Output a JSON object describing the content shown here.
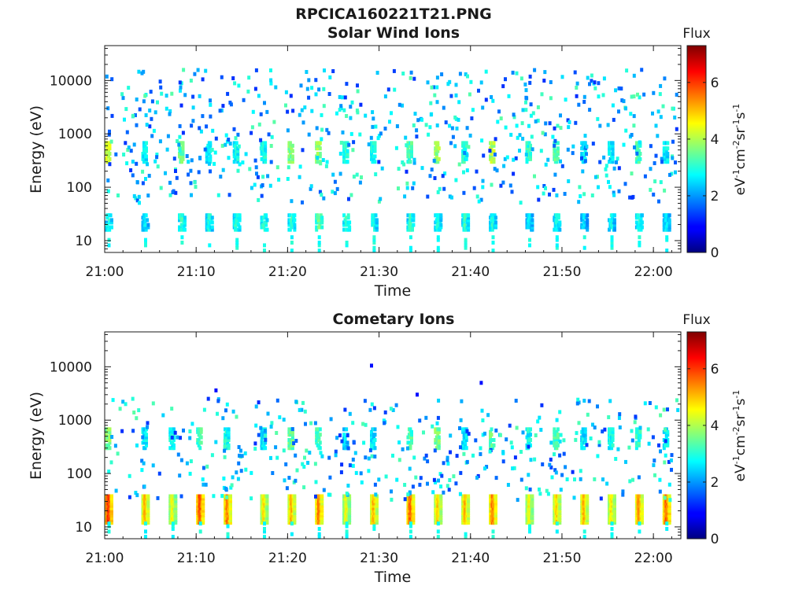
{
  "figure": {
    "title": "RPCICA160221T21.PNG"
  },
  "chart_data": [
    {
      "type": "heatmap",
      "title": "Solar Wind Ions",
      "xlabel": "Time",
      "ylabel": "Energy (eV)",
      "x_range": [
        "21:00",
        "22:03"
      ],
      "x_ticks": [
        "21:00",
        "21:10",
        "21:20",
        "21:30",
        "21:40",
        "21:50",
        "22:00"
      ],
      "y_scale": "log",
      "y_range": [
        6,
        45000
      ],
      "y_ticks": [
        10,
        100,
        1000,
        10000
      ],
      "y_tick_labels": [
        "10",
        "100",
        "1000",
        "10000"
      ],
      "colorbar": {
        "title": "Flux",
        "label": "eV-1cm-2sr-1s-1",
        "range": [
          0,
          7.3
        ],
        "ticks": [
          0,
          2,
          4,
          6
        ],
        "colormap": "jet"
      },
      "bursts": [
        {
          "t": "21:00",
          "low_flux": 3.4,
          "mid_flux": 4.6
        },
        {
          "t": "21:04",
          "low_flux": 3.0,
          "mid_flux": 3.0
        },
        {
          "t": "21:08",
          "low_flux": 3.6,
          "mid_flux": 3.8
        },
        {
          "t": "21:11",
          "low_flux": 3.4,
          "mid_flux": 3.0
        },
        {
          "t": "21:14",
          "low_flux": 3.6,
          "mid_flux": 3.2
        },
        {
          "t": "21:17",
          "low_flux": 3.6,
          "mid_flux": 3.2
        },
        {
          "t": "21:20",
          "low_flux": 3.6,
          "mid_flux": 4.0
        },
        {
          "t": "21:23",
          "low_flux": 4.0,
          "mid_flux": 4.2
        },
        {
          "t": "21:26",
          "low_flux": 3.6,
          "mid_flux": 3.4
        },
        {
          "t": "21:29",
          "low_flux": 3.4,
          "mid_flux": 3.2
        },
        {
          "t": "21:33",
          "low_flux": 3.6,
          "mid_flux": 3.6
        },
        {
          "t": "21:36",
          "low_flux": 3.4,
          "mid_flux": 4.2
        },
        {
          "t": "21:39",
          "low_flux": 3.6,
          "mid_flux": 3.4
        },
        {
          "t": "21:42",
          "low_flux": 3.4,
          "mid_flux": 4.4
        },
        {
          "t": "21:46",
          "low_flux": 3.2,
          "mid_flux": 3.4
        },
        {
          "t": "21:49",
          "low_flux": 3.4,
          "mid_flux": 3.8
        },
        {
          "t": "21:52",
          "low_flux": 3.0,
          "mid_flux": 3.0
        },
        {
          "t": "21:55",
          "low_flux": 3.2,
          "mid_flux": 3.0
        },
        {
          "t": "21:58",
          "low_flux": 3.4,
          "mid_flux": 3.6
        },
        {
          "t": "22:01",
          "low_flux": 3.2,
          "mid_flux": 3.0
        }
      ]
    },
    {
      "type": "heatmap",
      "title": "Cometary Ions",
      "xlabel": "Time",
      "ylabel": "Energy (eV)",
      "x_range": [
        "21:00",
        "22:03"
      ],
      "x_ticks": [
        "21:00",
        "21:10",
        "21:20",
        "21:30",
        "21:40",
        "21:50",
        "22:00"
      ],
      "y_scale": "log",
      "y_range": [
        6,
        45000
      ],
      "y_ticks": [
        10,
        100,
        1000,
        10000
      ],
      "y_tick_labels": [
        "10",
        "100",
        "1000",
        "10000"
      ],
      "colorbar": {
        "title": "Flux",
        "label": "eV-1cm-2sr-1s-1",
        "range": [
          0,
          7.3
        ],
        "ticks": [
          0,
          2,
          4,
          6
        ],
        "colormap": "jet"
      },
      "bursts": [
        {
          "t": "21:00",
          "low_flux": 6.6,
          "mid_flux": 4.0
        },
        {
          "t": "21:04",
          "low_flux": 5.6,
          "mid_flux": 3.0
        },
        {
          "t": "21:07",
          "low_flux": 5.0,
          "mid_flux": 3.2
        },
        {
          "t": "21:10",
          "low_flux": 6.4,
          "mid_flux": 3.6
        },
        {
          "t": "21:13",
          "low_flux": 6.0,
          "mid_flux": 3.2
        },
        {
          "t": "21:17",
          "low_flux": 5.2,
          "mid_flux": 3.0
        },
        {
          "t": "21:20",
          "low_flux": 5.6,
          "mid_flux": 3.8
        },
        {
          "t": "21:23",
          "low_flux": 6.0,
          "mid_flux": 3.6
        },
        {
          "t": "21:26",
          "low_flux": 5.0,
          "mid_flux": 2.8
        },
        {
          "t": "21:29",
          "low_flux": 5.6,
          "mid_flux": 3.0
        },
        {
          "t": "21:33",
          "low_flux": 6.2,
          "mid_flux": 3.6
        },
        {
          "t": "21:36",
          "low_flux": 5.4,
          "mid_flux": 4.0
        },
        {
          "t": "21:39",
          "low_flux": 5.6,
          "mid_flux": 3.0
        },
        {
          "t": "21:42",
          "low_flux": 6.0,
          "mid_flux": 3.8
        },
        {
          "t": "21:46",
          "low_flux": 5.0,
          "mid_flux": 3.2
        },
        {
          "t": "21:49",
          "low_flux": 5.4,
          "mid_flux": 3.6
        },
        {
          "t": "21:52",
          "low_flux": 5.6,
          "mid_flux": 3.0
        },
        {
          "t": "21:55",
          "low_flux": 5.2,
          "mid_flux": 3.2
        },
        {
          "t": "21:58",
          "low_flux": 5.8,
          "mid_flux": 3.4
        },
        {
          "t": "22:01",
          "low_flux": 6.2,
          "mid_flux": 3.0
        }
      ]
    }
  ]
}
